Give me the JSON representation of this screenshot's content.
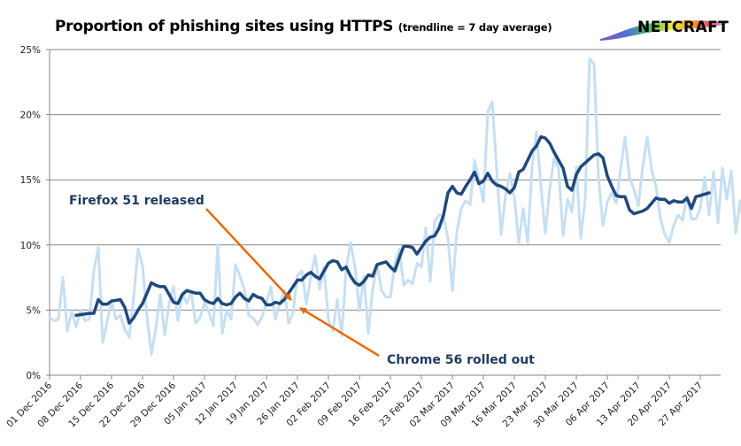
{
  "header": {
    "title": "Proportion of phishing sites using HTTPS",
    "subtitle": "(trendline = 7 day average)",
    "logo_text": "NETCRAFT"
  },
  "colors": {
    "daily": "#c6dff2",
    "trend": "#1f497d",
    "annotation_arrow": "#e36c09",
    "annotation_text": "#1f3b63",
    "grid": "#868686"
  },
  "chart_data": {
    "type": "line",
    "title": "Proportion of phishing sites using HTTPS (trendline = 7 day average)",
    "xlabel": "",
    "ylabel": "",
    "ylim": [
      0,
      25
    ],
    "y_ticks": [
      0,
      5,
      10,
      15,
      20,
      25
    ],
    "y_tick_labels": [
      "0%",
      "5%",
      "10%",
      "15%",
      "20%",
      "25%"
    ],
    "grid": true,
    "x_start": "01 Dec 2016",
    "x_tick_labels": [
      "01 Dec 2016",
      "08 Dec 2016",
      "15 Dec 2016",
      "22 Dec 2016",
      "29 Dec 2016",
      "05 Jan 2017",
      "12 Jan 2017",
      "19 Jan 2017",
      "26 Jan 2017",
      "02 Feb 2017",
      "09 Feb 2017",
      "16 Feb 2017",
      "23 Feb 2017",
      "02 Mar 2017",
      "09 Mar 2017",
      "16 Mar 2017",
      "23 Mar 2017",
      "30 Mar 2017",
      "06 Apr 2017",
      "13 Apr 2017",
      "20 Apr 2017",
      "27 Apr 2017"
    ],
    "x_tick_interval_days": 7,
    "series": [
      {
        "name": "Daily",
        "start_day": 0,
        "values": [
          4.4,
          4.2,
          4.3,
          7.5,
          3.4,
          4.9,
          3.7,
          5.0,
          4.2,
          4.3,
          8.0,
          9.8,
          2.5,
          4.1,
          5.7,
          4.3,
          4.6,
          3.5,
          2.9,
          6.0,
          9.7,
          8.4,
          4.5,
          1.6,
          3.6,
          6.2,
          3.1,
          5.5,
          6.8,
          4.2,
          6.3,
          5.5,
          6.4,
          4.0,
          4.4,
          5.6,
          4.8,
          3.8,
          10.0,
          3.2,
          5.0,
          4.3,
          8.5,
          7.6,
          6.6,
          4.6,
          4.4,
          3.9,
          4.5,
          5.6,
          6.8,
          4.3,
          5.5,
          6.5,
          4.0,
          4.8,
          7.7,
          8.0,
          5.5,
          7.5,
          9.2,
          6.6,
          8.3,
          4.2,
          3.4,
          5.8,
          3.0,
          8.2,
          10.2,
          8.3,
          4.9,
          7.6,
          3.2,
          6.6,
          8.5,
          6.5,
          6.0,
          6.0,
          8.6,
          9.7,
          6.9,
          7.3,
          7.0,
          8.6,
          8.3,
          11.3,
          7.2,
          11.8,
          12.3,
          12.2,
          10.5,
          6.5,
          11.0,
          12.8,
          13.4,
          13.1,
          16.5,
          15.0,
          13.3,
          20.2,
          21.0,
          15.8,
          10.8,
          13.8,
          15.5,
          13.6,
          10.2,
          12.8,
          10.2,
          16.0,
          18.7,
          14.5,
          10.9,
          14.3,
          16.7,
          15.9,
          10.7,
          13.5,
          12.5,
          16.0,
          10.5,
          13.5,
          24.3,
          23.9,
          15.2,
          11.5,
          13.3,
          14.0,
          13.2,
          15.8,
          18.3,
          15.2,
          14.3,
          13.0,
          16.0,
          18.3,
          15.8,
          14.5,
          12.0,
          10.8,
          10.2,
          11.5,
          12.3,
          11.9,
          13.8,
          12.0,
          12.0,
          12.8,
          15.2,
          12.3,
          15.6,
          11.7,
          15.9,
          13.5,
          15.7,
          10.9,
          13.4,
          11.0,
          17.7,
          14.1,
          13.6
        ]
      },
      {
        "name": "7 day average",
        "start_day": 6,
        "values": [
          4.6,
          4.65,
          4.7,
          4.75,
          4.75,
          5.8,
          5.45,
          5.45,
          5.7,
          5.75,
          5.8,
          5.2,
          4.0,
          4.4,
          5.0,
          5.5,
          6.3,
          7.1,
          6.9,
          6.8,
          6.8,
          6.2,
          5.6,
          5.5,
          6.2,
          6.5,
          6.4,
          6.3,
          6.3,
          5.8,
          5.6,
          5.5,
          5.9,
          5.5,
          5.4,
          5.5,
          6.0,
          6.3,
          5.9,
          5.7,
          6.2,
          6.0,
          5.9,
          5.4,
          5.4,
          5.6,
          5.5,
          5.8,
          6.3,
          6.8,
          7.3,
          7.3,
          7.7,
          7.9,
          7.6,
          7.4,
          8.0,
          8.6,
          8.8,
          8.7,
          8.1,
          8.3,
          7.6,
          7.1,
          6.9,
          7.2,
          7.7,
          7.6,
          8.5,
          8.6,
          8.7,
          8.3,
          8.0,
          9.0,
          9.9,
          9.9,
          9.8,
          9.3,
          9.8,
          10.3,
          10.6,
          10.7,
          11.3,
          12.3,
          14.0,
          14.5,
          14.0,
          13.9,
          14.5,
          15.0,
          15.6,
          14.7,
          14.9,
          15.5,
          14.9,
          14.6,
          14.5,
          14.3,
          14.0,
          14.4,
          15.6,
          15.8,
          16.5,
          17.2,
          17.6,
          18.3,
          18.2,
          17.8,
          17.1,
          16.5,
          15.9,
          14.5,
          14.2,
          15.4,
          16.0,
          16.3,
          16.6,
          16.9,
          17.0,
          16.7,
          15.3,
          14.5,
          13.8,
          13.7,
          13.7,
          12.7,
          12.4,
          12.5,
          12.6,
          12.8,
          13.2,
          13.6,
          13.5,
          13.5,
          13.2,
          13.4,
          13.3,
          13.3,
          13.6,
          12.8,
          13.7,
          13.8,
          13.9,
          14.0
        ]
      }
    ],
    "annotations": [
      {
        "text": "Firefox 51 released",
        "date": "24 Jan 2017",
        "value": 5.5
      },
      {
        "text": "Chrome 56 rolled out",
        "date": "25 Jan 2017",
        "value": 5.3
      }
    ]
  }
}
